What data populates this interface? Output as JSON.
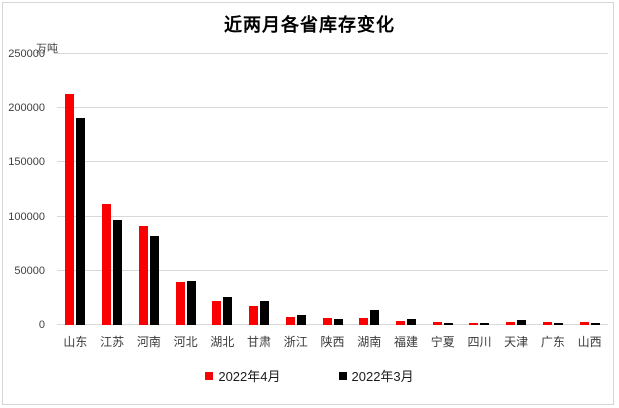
{
  "chart_data": {
    "type": "bar",
    "title": "近两月各省库存变化",
    "ylabel": "万吨",
    "xlabel": "",
    "categories": [
      "山东",
      "江苏",
      "河南",
      "河北",
      "湖北",
      "甘肃",
      "浙江",
      "陕西",
      "湖南",
      "福建",
      "宁夏",
      "四川",
      "天津",
      "广东",
      "山西"
    ],
    "series": [
      {
        "name": "2022年4月",
        "color": "#fa0000",
        "values": [
          213000,
          112000,
          91000,
          40000,
          22000,
          18000,
          7000,
          6500,
          6700,
          4000,
          3000,
          2000,
          2500,
          2500,
          2500
        ]
      },
      {
        "name": "2022年3月",
        "color": "#000000",
        "values": [
          191000,
          97000,
          82000,
          41000,
          26000,
          22000,
          9000,
          6000,
          14000,
          6000,
          2000,
          1800,
          4500,
          2000,
          2200
        ]
      }
    ],
    "ylim": [
      0,
      250000
    ],
    "y_ticks": [
      0,
      50000,
      100000,
      150000,
      200000,
      250000
    ],
    "y_tick_labels": [
      "0",
      "50000",
      "100000",
      "150000",
      "200000",
      "250000"
    ],
    "grid": "horizontal",
    "grid_color": "#d9d9d9",
    "legend_position": "bottom"
  },
  "frame": {
    "border_color": "#d6d6d6",
    "background": "#ffffff"
  }
}
